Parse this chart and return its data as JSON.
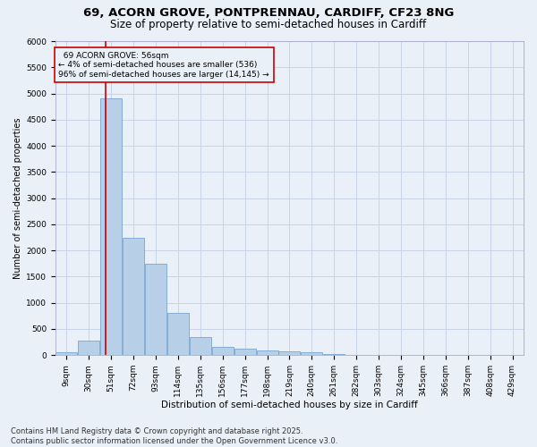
{
  "title_line1": "69, ACORN GROVE, PONTPRENNAU, CARDIFF, CF23 8NG",
  "title_line2": "Size of property relative to semi-detached houses in Cardiff",
  "xlabel": "Distribution of semi-detached houses by size in Cardiff",
  "ylabel": "Number of semi-detached properties",
  "footnote_line1": "Contains HM Land Registry data © Crown copyright and database right 2025.",
  "footnote_line2": "Contains public sector information licensed under the Open Government Licence v3.0.",
  "property_label": "69 ACORN GROVE: 56sqm",
  "pct_smaller": 4,
  "count_smaller": 536,
  "pct_larger": 96,
  "count_larger": 14145,
  "bin_labels": [
    "9sqm",
    "30sqm",
    "51sqm",
    "72sqm",
    "93sqm",
    "114sqm",
    "135sqm",
    "156sqm",
    "177sqm",
    "198sqm",
    "219sqm",
    "240sqm",
    "261sqm",
    "282sqm",
    "303sqm",
    "324sqm",
    "345sqm",
    "366sqm",
    "387sqm",
    "408sqm",
    "429sqm"
  ],
  "bin_left_edges": [
    9,
    30,
    51,
    72,
    93,
    114,
    135,
    156,
    177,
    198,
    219,
    240,
    261,
    282,
    303,
    324,
    345,
    366,
    387,
    408,
    429
  ],
  "bar_values": [
    50,
    270,
    4900,
    2250,
    1750,
    800,
    350,
    150,
    130,
    90,
    70,
    50,
    20,
    10,
    5,
    5,
    3,
    3,
    2,
    2,
    2
  ],
  "bar_color": "#b8cfe8",
  "bar_edge_color": "#6699cc",
  "bin_width": 21,
  "vline_x": 56,
  "vline_color": "#cc0000",
  "ylim": [
    0,
    6000
  ],
  "yticks": [
    0,
    500,
    1000,
    1500,
    2000,
    2500,
    3000,
    3500,
    4000,
    4500,
    5000,
    5500,
    6000
  ],
  "grid_color": "#c8d4e8",
  "bg_color": "#eaf0f8",
  "annotation_box_color": "#cc0000",
  "title_fontsize": 9.5,
  "subtitle_fontsize": 8.5,
  "axis_label_fontsize": 7.5,
  "tick_fontsize": 6.5,
  "footnote_fontsize": 6,
  "ylabel_fontsize": 7
}
